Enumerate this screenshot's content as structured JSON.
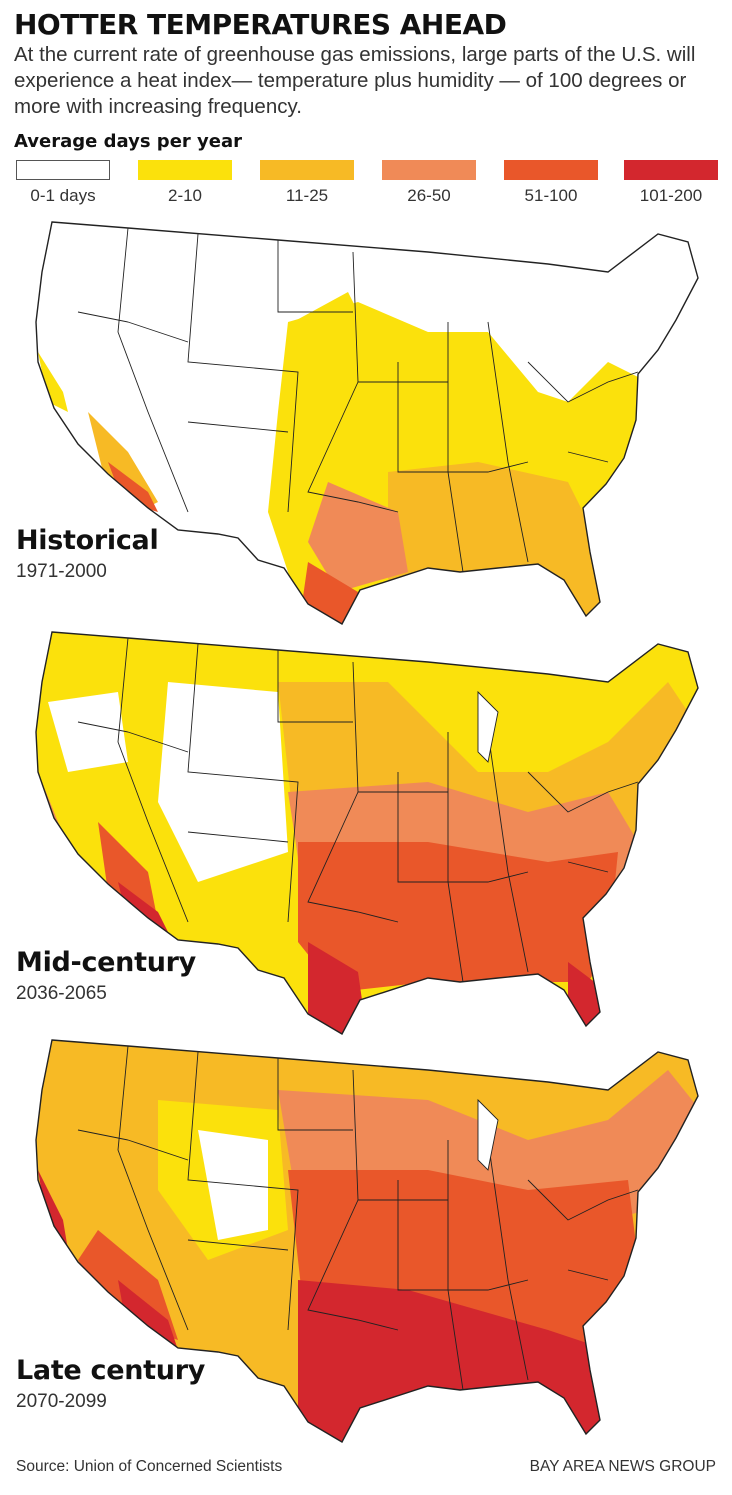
{
  "header": {
    "title": "HOTTER TEMPERATURES AHEAD",
    "description": "At the current rate of greenhouse gas emissions, large parts of the U.S. will experience a heat index— temperature plus humidity — of 100 degrees or more with increasing frequency."
  },
  "legend": {
    "title": "Average days per year",
    "items": [
      {
        "label": "0-1 days",
        "color": "#ffffff"
      },
      {
        "label": "2-10",
        "color": "#fbe10c"
      },
      {
        "label": "11-25",
        "color": "#f7ba25"
      },
      {
        "label": "26-50",
        "color": "#f08a57"
      },
      {
        "label": "51-100",
        "color": "#e9572a"
      },
      {
        "label": "101-200",
        "color": "#d3272e"
      }
    ]
  },
  "maps": [
    {
      "name": "Historical",
      "years": "1971-2000"
    },
    {
      "name": "Mid-century",
      "years": "2036-2065"
    },
    {
      "name": "Late century",
      "years": "2070-2099"
    }
  ],
  "footer": {
    "source": "Source: Union of Concerned Scientists",
    "credit": "BAY AREA NEWS GROUP"
  }
}
